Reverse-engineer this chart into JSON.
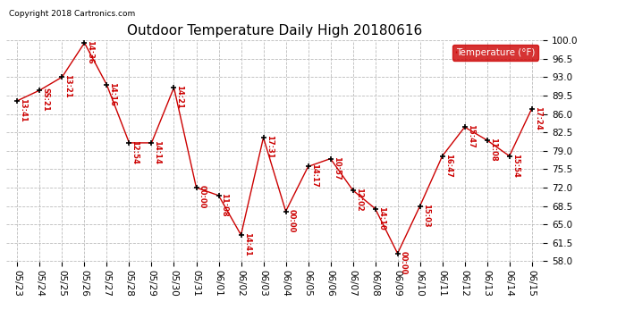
{
  "title": "Outdoor Temperature Daily High 20180616",
  "copyright": "Copyright 2018 Cartronics.com",
  "legend_label": "Temperature (°F)",
  "dates": [
    "05/23",
    "05/24",
    "05/25",
    "05/26",
    "05/27",
    "05/28",
    "05/29",
    "05/30",
    "05/31",
    "06/01",
    "06/02",
    "06/03",
    "06/04",
    "06/05",
    "06/06",
    "06/07",
    "06/08",
    "06/09",
    "06/10",
    "06/11",
    "06/12",
    "06/13",
    "06/14",
    "06/15"
  ],
  "temps": [
    88.5,
    90.5,
    93.0,
    99.5,
    91.5,
    80.5,
    80.5,
    91.0,
    72.0,
    70.5,
    63.0,
    81.5,
    67.5,
    76.0,
    77.5,
    71.5,
    68.0,
    59.5,
    68.5,
    78.0,
    83.5,
    81.0,
    78.0,
    87.0
  ],
  "time_labels": [
    "13:41",
    "SS:21",
    "13:21",
    "14:36",
    "14:16",
    "12:54",
    "14:14",
    "14:21",
    "00:00",
    "11:08",
    "14:41",
    "17:31",
    "00:00",
    "14:17",
    "10:57",
    "12:02",
    "14:10",
    "00:00",
    "15:03",
    "16:47",
    "15:47",
    "11:08",
    "15:54",
    "17:24"
  ],
  "ylim_min": 58.0,
  "ylim_max": 100.0,
  "yticks": [
    58.0,
    61.5,
    65.0,
    68.5,
    72.0,
    75.5,
    79.0,
    82.5,
    86.0,
    89.5,
    93.0,
    96.5,
    100.0
  ],
  "line_color": "#cc0000",
  "marker_color": "#000000",
  "bg_color": "#ffffff",
  "grid_color": "#bbbbbb",
  "legend_bg": "#cc0000",
  "legend_text_color": "#ffffff",
  "title_fontsize": 11,
  "label_fontsize": 6,
  "tick_fontsize": 7.5,
  "copyright_fontsize": 6.5
}
